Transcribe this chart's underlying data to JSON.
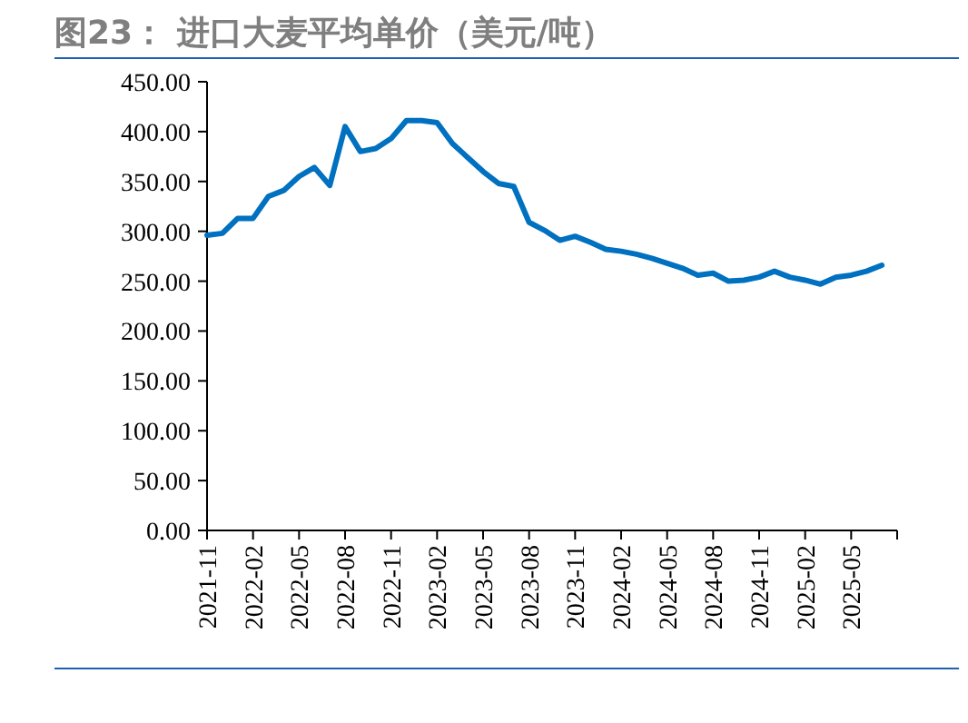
{
  "chart_data": {
    "type": "line",
    "title": "图23：  进口大麦平均单价（美元/吨）",
    "x": [
      "2021-11",
      "2021-12",
      "2022-01",
      "2022-02",
      "2022-03",
      "2022-04",
      "2022-05",
      "2022-06",
      "2022-07",
      "2022-08",
      "2022-09",
      "2022-10",
      "2022-11",
      "2022-12",
      "2023-01",
      "2023-02",
      "2023-03",
      "2023-04",
      "2023-05",
      "2023-06",
      "2023-07",
      "2023-08",
      "2023-09",
      "2023-10",
      "2023-11",
      "2023-12",
      "2024-01",
      "2024-02",
      "2024-03",
      "2024-04",
      "2024-05",
      "2024-06",
      "2024-07",
      "2024-08",
      "2024-09",
      "2024-10",
      "2024-11",
      "2024-12",
      "2025-01",
      "2025-02",
      "2025-03",
      "2025-04",
      "2025-05",
      "2025-06",
      "2025-07"
    ],
    "series": [
      {
        "color": "#0070c0",
        "values": [
          296,
          298,
          313,
          313,
          335,
          341,
          355,
          364,
          346,
          405,
          380,
          383,
          393,
          411,
          411,
          409,
          388,
          374,
          360,
          348,
          345,
          309,
          301,
          291,
          295,
          289,
          282,
          280,
          277,
          273,
          268,
          263,
          256,
          258,
          250,
          251,
          254,
          260,
          254,
          251,
          247,
          254,
          256,
          260,
          266
        ]
      }
    ],
    "xlim": [
      "2021-11",
      "2025-08"
    ],
    "xticks": [
      "2021-11",
      "2022-02",
      "2022-05",
      "2022-08",
      "2022-11",
      "2023-02",
      "2023-05",
      "2023-08",
      "2023-11",
      "2024-02",
      "2024-05",
      "2024-08",
      "2024-11",
      "2025-02",
      "2025-05",
      {
        "value": "2025-08",
        "label": null
      }
    ],
    "ylim": [
      0,
      450
    ],
    "yticks": [
      {
        "value": 0,
        "label": "0.00"
      },
      {
        "value": 50,
        "label": "50.00"
      },
      {
        "value": 100,
        "label": "100.00"
      },
      {
        "value": 150,
        "label": "150.00"
      },
      {
        "value": 200,
        "label": "200.00"
      },
      {
        "value": 250,
        "label": "250.00"
      },
      {
        "value": 300,
        "label": "300.00"
      },
      {
        "value": 350,
        "label": "350.00"
      },
      {
        "value": 400,
        "label": "400.00"
      },
      {
        "value": 450,
        "label": "450.00"
      }
    ],
    "grid": false,
    "marker": "none",
    "line_style": "solid"
  }
}
